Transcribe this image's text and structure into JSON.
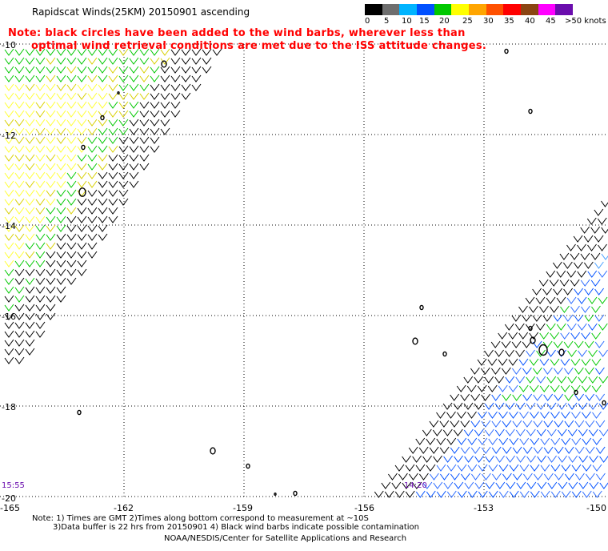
{
  "header": {
    "title": "Rapidscat Winds(25KM) 20150901 ascending",
    "note_line1": "Note: black circles have been added to the wind barbs, wherever less than",
    "note_line2": "      optimal wind retrieval conditions are met due to the ISS attitude changes."
  },
  "legend": {
    "units": ">50 knots",
    "labels": [
      "0",
      "5",
      "10",
      "15",
      "20",
      "25",
      "30",
      "35",
      "40",
      "45"
    ],
    "colors": [
      "#000000",
      "#6e6e6e",
      "#00b4ff",
      "#0050ff",
      "#00c800",
      "#ffff00",
      "#ffa500",
      "#ff5000",
      "#ff0000",
      "#8b4513",
      "#ff00ff",
      "#6a0dad"
    ]
  },
  "axes": {
    "lat_labels": [
      "-10",
      "-12",
      "-14",
      "-16",
      "-18",
      "-20"
    ],
    "lon_labels": [
      "-165",
      "-162",
      "-159",
      "-156",
      "-153",
      "-150"
    ]
  },
  "times": {
    "left_pass": "15:55",
    "right_pass": "14:20"
  },
  "footer": {
    "line1": "Note: 1) Times are GMT 2)Times along bottom correspond to measurement at ~10S",
    "line2": "3)Data buffer is 22 hrs from 20150901 4) Black wind barbs indicate possible contamination",
    "line3": "NOAA/NESDIS/Center for Satellite Applications and Research"
  }
}
